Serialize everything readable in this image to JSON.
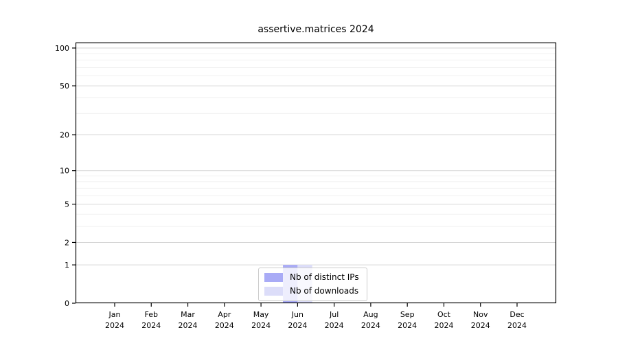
{
  "title": "assertive.matrices 2024",
  "chart_data": {
    "type": "bar",
    "title": "assertive.matrices 2024",
    "categories": [
      "Jan 2024",
      "Feb 2024",
      "Mar 2024",
      "Apr 2024",
      "May 2024",
      "Jun 2024",
      "Jul 2024",
      "Aug 2024",
      "Sep 2024",
      "Oct 2024",
      "Nov 2024",
      "Dec 2024"
    ],
    "x_tick_labels": {
      "months": [
        "Jan",
        "Feb",
        "Mar",
        "Apr",
        "May",
        "Jun",
        "Jul",
        "Aug",
        "Sep",
        "Oct",
        "Nov",
        "Dec"
      ],
      "year": "2024"
    },
    "series": [
      {
        "name": "Nb of distinct IPs",
        "color": "#a9abf6",
        "values": [
          0,
          0,
          0,
          0,
          0,
          1,
          0,
          0,
          0,
          0,
          0,
          0
        ]
      },
      {
        "name": "Nb of downloads",
        "color": "#dcddf9",
        "values": [
          0,
          0,
          0,
          0,
          0,
          1,
          0,
          0,
          0,
          0,
          0,
          0
        ]
      }
    ],
    "xlabel": "",
    "ylabel": "",
    "yscale": "log1p",
    "ylim": [
      0,
      100
    ],
    "yticks": [
      0,
      1,
      2,
      5,
      10,
      20,
      50,
      100
    ],
    "y_minor_gridlines": [
      3,
      4,
      6,
      7,
      8,
      9,
      30,
      40,
      60,
      70,
      80,
      90
    ],
    "grid": "horizontal",
    "legend_position": "lower center inside plot",
    "colors": {
      "grid_major": "#d6d6d6",
      "grid_minor": "#f1f1f1",
      "spine": "#000000",
      "tick": "#000000",
      "text": "#000000",
      "background": "#ffffff",
      "legend_border": "#cccccc",
      "legend_background": "rgba(255,255,255,0.8)"
    }
  }
}
